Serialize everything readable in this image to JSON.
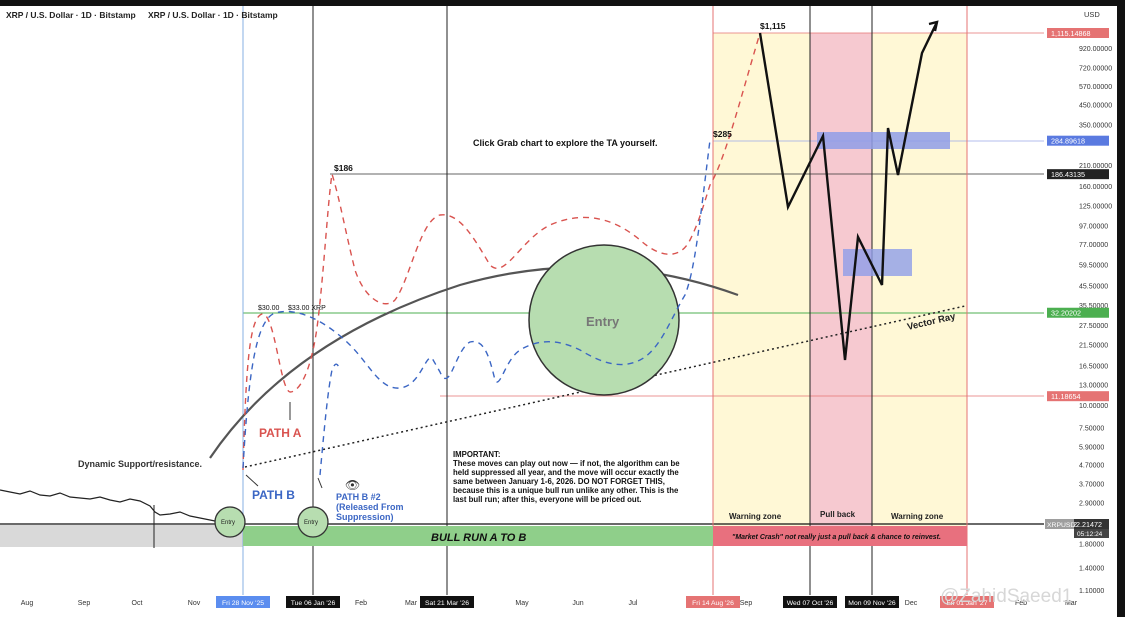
{
  "chart_title": "XRP / U.S. Dollar · 1D · Bitstamp",
  "axis_currency": "USD",
  "watermark": "@ZahidSaeed1",
  "colors": {
    "path_a": "#d9534f",
    "path_b": "#3b66c4",
    "support_line": "#555555",
    "warning_zone": "#fff8d6",
    "pullback_zone": "#f6c9d0",
    "bull_run_bar": "#8fcf8a",
    "market_crash_bar": "#e8707e",
    "entry_fill": "#b7ddb0",
    "green_level": "#4caf50",
    "red_level": "#e57373",
    "blue_box": "#8f9ee8",
    "purple_level": "#8a63d2"
  },
  "chart_data": {
    "type": "line",
    "title": "XRP / U.S. Dollar · 1D · Bitstamp",
    "symbol": "XRPUSD",
    "y_scale": "log",
    "x_tick_labels": [
      "Aug",
      "Sep",
      "Oct",
      "Nov",
      "Feb",
      "Mar",
      "May",
      "Jun",
      "Jul",
      "Sep",
      "Dec",
      "Feb",
      "Mar"
    ],
    "x_date_labels": [
      "Fri 28 Nov '25",
      "Tue 06 Jan '26",
      "Sat 21 Mar '26",
      "Fri 14 Aug '26",
      "Wed 07 Oct '26",
      "Mon 09 Nov '26",
      "Fri 01 Jan '27"
    ],
    "y_tick_labels": [
      "920.00000",
      "720.00000",
      "570.00000",
      "450.00000",
      "350.00000",
      "210.00000",
      "160.00000",
      "125.00000",
      "97.00000",
      "77.00000",
      "59.50000",
      "45.50000",
      "35.50000",
      "27.50000",
      "21.50000",
      "16.50000",
      "13.00000",
      "10.00000",
      "7.50000",
      "5.90000",
      "4.70000",
      "3.70000",
      "2.90000",
      "1.80000",
      "1.40000",
      "1.10000"
    ],
    "price_tags": [
      {
        "label": "1,115.14868",
        "value": 1115.14868,
        "color": "#e57373"
      },
      {
        "label": "284.89618",
        "value": 284.89618,
        "color": "#5a7ae0"
      },
      {
        "label": "186.43135",
        "value": 186.43135,
        "color": "#222222"
      },
      {
        "label": "32.20202",
        "value": 32.20202,
        "color": "#4caf50"
      },
      {
        "label": "11.18654",
        "value": 11.18654,
        "color": "#e57373"
      },
      {
        "label": "2.21472",
        "value": 2.21472,
        "color": "#333333"
      }
    ],
    "current_price": {
      "symbol": "XRPUSD",
      "price": "2.21472",
      "countdown": "05:12:24"
    },
    "price_labels": [
      "$1,115",
      "$285",
      "$186",
      "$30.00",
      "$33.00 XRP"
    ]
  },
  "annotations": {
    "click_grab": "Click Grab chart to explore the TA yourself.",
    "dynamic_support": "Dynamic Support/resistance.",
    "path_a": "PATH A",
    "path_b": "PATH B",
    "path_b2_line1": "PATH B #2",
    "path_b2_line2": "(Released From",
    "path_b2_line3": "Suppression)",
    "entry_big": "Entry",
    "entry_small": "Entry",
    "vector_ray": "Vector Ray",
    "important_title": "IMPORTANT:",
    "important_lines": [
      "These moves can play out now — if not, the algorithm can be",
      "held suppressed all year, and the move will occur exactly the",
      "same between January 1-6, 2026. DO NOT FORGET THIS,",
      "because this is a unique bull run unlike any other. This is the",
      "last bull run; after this, everyone will be priced out."
    ],
    "warning_zone_1": "Warning zone",
    "pull_back": "Pull back",
    "warning_zone_2": "Warning zone",
    "bull_run": "BULL RUN A TO B",
    "market_crash": "\"Market Crash\" not really just a pull back & chance to reinvest."
  }
}
